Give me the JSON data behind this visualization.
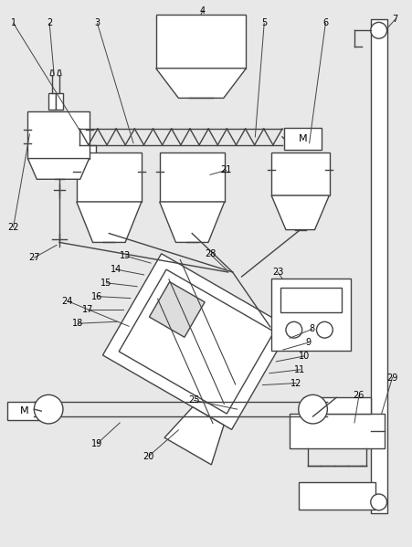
{
  "bg_color": "#e8e8e8",
  "line_color": "#444444",
  "lw": 1.0,
  "fig_width": 4.52,
  "fig_height": 5.99,
  "dpi": 100
}
